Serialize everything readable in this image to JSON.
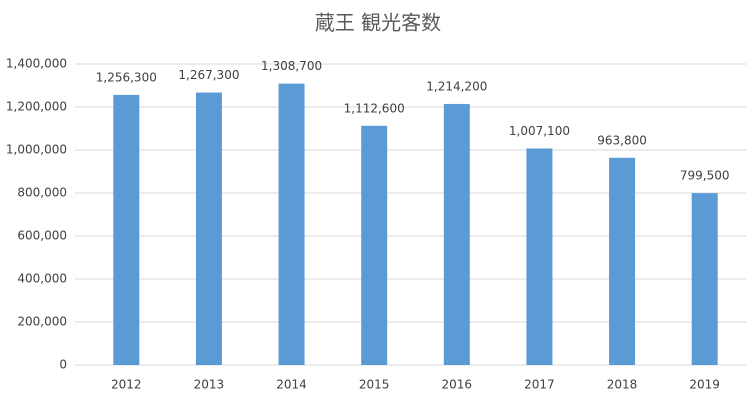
{
  "chart_data": {
    "type": "bar",
    "title": "蔵王 観光客数",
    "categories": [
      "2012",
      "2013",
      "2014",
      "2015",
      "2016",
      "2017",
      "2018",
      "2019"
    ],
    "values": [
      1256300,
      1267300,
      1308700,
      1112600,
      1214200,
      1007100,
      963800,
      799500
    ],
    "value_labels": [
      "1,256,300",
      "1,267,300",
      "1,308,700",
      "1,112,600",
      "1,214,200",
      "1,007,100",
      "963,800",
      "799,500"
    ],
    "color": "#5b9bd5",
    "ylim": [
      0,
      1400000
    ],
    "yticks": [
      0,
      {
        "value": 200000,
        "label": "200,000"
      },
      {
        "value": 400000,
        "label": "400,000"
      },
      {
        "value": 600000,
        "label": "600,000"
      },
      {
        "value": 800000,
        "label": "800,000"
      },
      {
        "value": 1000000,
        "label": "1,000,000"
      },
      {
        "value": 1200000,
        "label": "1,200,000"
      },
      {
        "value": 1400000,
        "label": "1,400,000"
      }
    ],
    "grid": true
  }
}
